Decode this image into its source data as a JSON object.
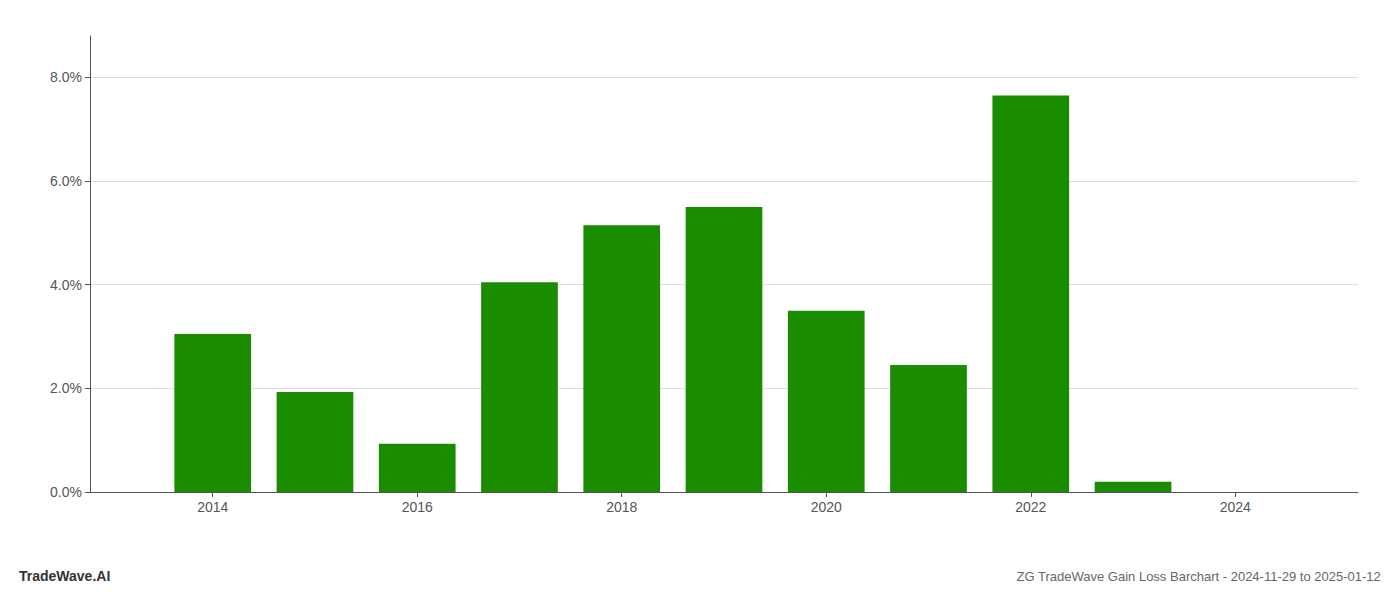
{
  "chart_data": {
    "type": "bar",
    "title": "ZG TradeWave Gain Loss Barchart - 2024-11-29 to 2025-01-12",
    "annotations": [
      "TradeWave.AI"
    ],
    "x": [
      2014,
      2015,
      2016,
      2017,
      2018,
      2019,
      2020,
      2021,
      2022,
      2023
    ],
    "values": [
      0.0305,
      0.0193,
      0.0093,
      0.0405,
      0.0515,
      0.055,
      0.035,
      0.0245,
      0.0765,
      0.002
    ],
    "color": "#1a8c00",
    "xlim": [
      2012.8,
      2025.2
    ],
    "xticks": [
      2014,
      2016,
      2018,
      2020,
      2022,
      2024
    ],
    "ylim": [
      0,
      0.088
    ],
    "yticks": [
      {
        "value": 0.0,
        "label": "0.0%"
      },
      {
        "value": 0.02,
        "label": "2.0%"
      },
      {
        "value": 0.04,
        "label": "4.0%"
      },
      {
        "value": 0.06,
        "label": "6.0%"
      },
      {
        "value": 0.08,
        "label": "8.0%"
      }
    ],
    "grid": true
  }
}
